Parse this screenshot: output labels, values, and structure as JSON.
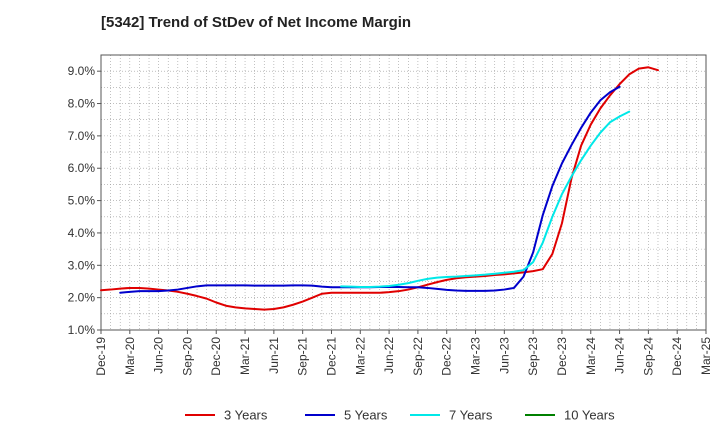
{
  "chart_data": {
    "type": "line",
    "title": "[5342]  Trend of StDev of Net Income Margin",
    "xlabel": "",
    "ylabel": "",
    "ylim": [
      1.0,
      9.5
    ],
    "yticks": [
      "1.0%",
      "2.0%",
      "3.0%",
      "4.0%",
      "5.0%",
      "6.0%",
      "7.0%",
      "8.0%",
      "9.0%"
    ],
    "ytick_values": [
      1,
      2,
      3,
      4,
      5,
      6,
      7,
      8,
      9
    ],
    "xticks": [
      "Dec-19",
      "Mar-20",
      "Jun-20",
      "Sep-20",
      "Dec-20",
      "Mar-21",
      "Jun-21",
      "Sep-21",
      "Dec-21",
      "Mar-22",
      "Jun-22",
      "Sep-22",
      "Dec-22",
      "Mar-23",
      "Jun-23",
      "Sep-23",
      "Dec-23",
      "Mar-24",
      "Jun-24",
      "Sep-24",
      "Dec-24",
      "Mar-25"
    ],
    "grid": true,
    "legend_position": "bottom",
    "series": [
      {
        "name": "3 Years",
        "color": "#e00000",
        "start": 0,
        "values": [
          2.23,
          2.25,
          2.28,
          2.3,
          2.3,
          2.28,
          2.25,
          2.22,
          2.18,
          2.12,
          2.05,
          1.97,
          1.85,
          1.75,
          1.7,
          1.67,
          1.65,
          1.63,
          1.65,
          1.7,
          1.78,
          1.88,
          2.0,
          2.12,
          2.15,
          2.15,
          2.15,
          2.15,
          2.15,
          2.15,
          2.17,
          2.2,
          2.25,
          2.32,
          2.4,
          2.48,
          2.55,
          2.6,
          2.63,
          2.65,
          2.67,
          2.7,
          2.72,
          2.75,
          2.78,
          2.82,
          2.88,
          3.35,
          4.3,
          5.7,
          6.7,
          7.35,
          7.85,
          8.25,
          8.6,
          8.9,
          9.08,
          9.12,
          9.03
        ]
      },
      {
        "name": "5 Years",
        "color": "#0000cc",
        "start": 2,
        "values": [
          2.15,
          2.18,
          2.2,
          2.2,
          2.2,
          2.22,
          2.25,
          2.3,
          2.35,
          2.38,
          2.38,
          2.38,
          2.38,
          2.38,
          2.37,
          2.37,
          2.37,
          2.37,
          2.38,
          2.38,
          2.37,
          2.34,
          2.32,
          2.32,
          2.32,
          2.32,
          2.32,
          2.33,
          2.33,
          2.33,
          2.32,
          2.32,
          2.3,
          2.27,
          2.24,
          2.22,
          2.21,
          2.21,
          2.21,
          2.22,
          2.25,
          2.3,
          2.65,
          3.4,
          4.55,
          5.45,
          6.15,
          6.72,
          7.25,
          7.72,
          8.1,
          8.35,
          8.52
        ]
      },
      {
        "name": "7 Years",
        "color": "#00e8e8",
        "start": 25,
        "values": [
          2.35,
          2.34,
          2.33,
          2.33,
          2.34,
          2.36,
          2.4,
          2.45,
          2.52,
          2.58,
          2.62,
          2.64,
          2.65,
          2.67,
          2.69,
          2.71,
          2.74,
          2.77,
          2.8,
          2.85,
          3.1,
          3.7,
          4.5,
          5.2,
          5.75,
          6.25,
          6.7,
          7.1,
          7.42,
          7.6,
          7.75
        ]
      },
      {
        "name": "10 Years",
        "color": "#008000",
        "start": 0,
        "values": []
      }
    ]
  }
}
